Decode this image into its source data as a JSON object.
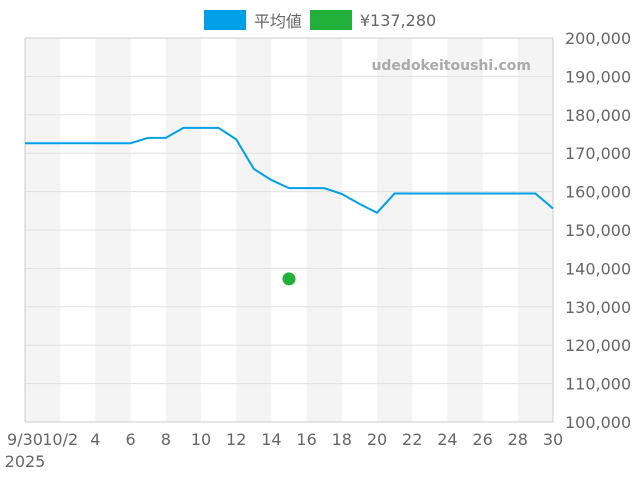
{
  "chart_data": {
    "type": "line",
    "watermark": "udedokeitoushi.com",
    "x_start": "2025-09-30",
    "x": [
      "9/30",
      "10/1",
      "10/2",
      "10/3",
      "10/4",
      "10/5",
      "10/6",
      "10/7",
      "10/8",
      "10/9",
      "10/10",
      "10/11",
      "10/12",
      "10/13",
      "10/14",
      "10/15",
      "10/16",
      "10/17",
      "10/18",
      "10/19",
      "10/20",
      "10/21",
      "10/22",
      "10/23",
      "10/24",
      "10/25",
      "10/26",
      "10/27",
      "10/28",
      "10/29",
      "10/30"
    ],
    "x_tick_labels": [
      "9/30",
      "10/2",
      "4",
      "6",
      "8",
      "10",
      "12",
      "14",
      "16",
      "18",
      "20",
      "22",
      "24",
      "26",
      "28",
      "30"
    ],
    "x_year_label": "2025",
    "ylim": [
      100000,
      200000
    ],
    "y_tick_labels": [
      "100,000",
      "110,000",
      "120,000",
      "130,000",
      "140,000",
      "150,000",
      "160,000",
      "170,000",
      "180,000",
      "190,000",
      "200,000"
    ],
    "grid": true,
    "legend_position": "top",
    "series": [
      {
        "name": "平均値",
        "color": "#00a0e9",
        "type": "line",
        "values": [
          172600,
          172600,
          172600,
          172600,
          172600,
          172600,
          172600,
          174000,
          174000,
          176600,
          176600,
          176600,
          173600,
          165900,
          163000,
          160900,
          160900,
          160900,
          159400,
          156800,
          154500,
          159500,
          159500,
          159500,
          159500,
          159500,
          159500,
          159500,
          159500,
          159500,
          155600
        ]
      },
      {
        "name": "¥137,280",
        "color": "#22b03a",
        "type": "point",
        "points": [
          {
            "x": "10/15",
            "y": 137280
          }
        ]
      }
    ]
  }
}
